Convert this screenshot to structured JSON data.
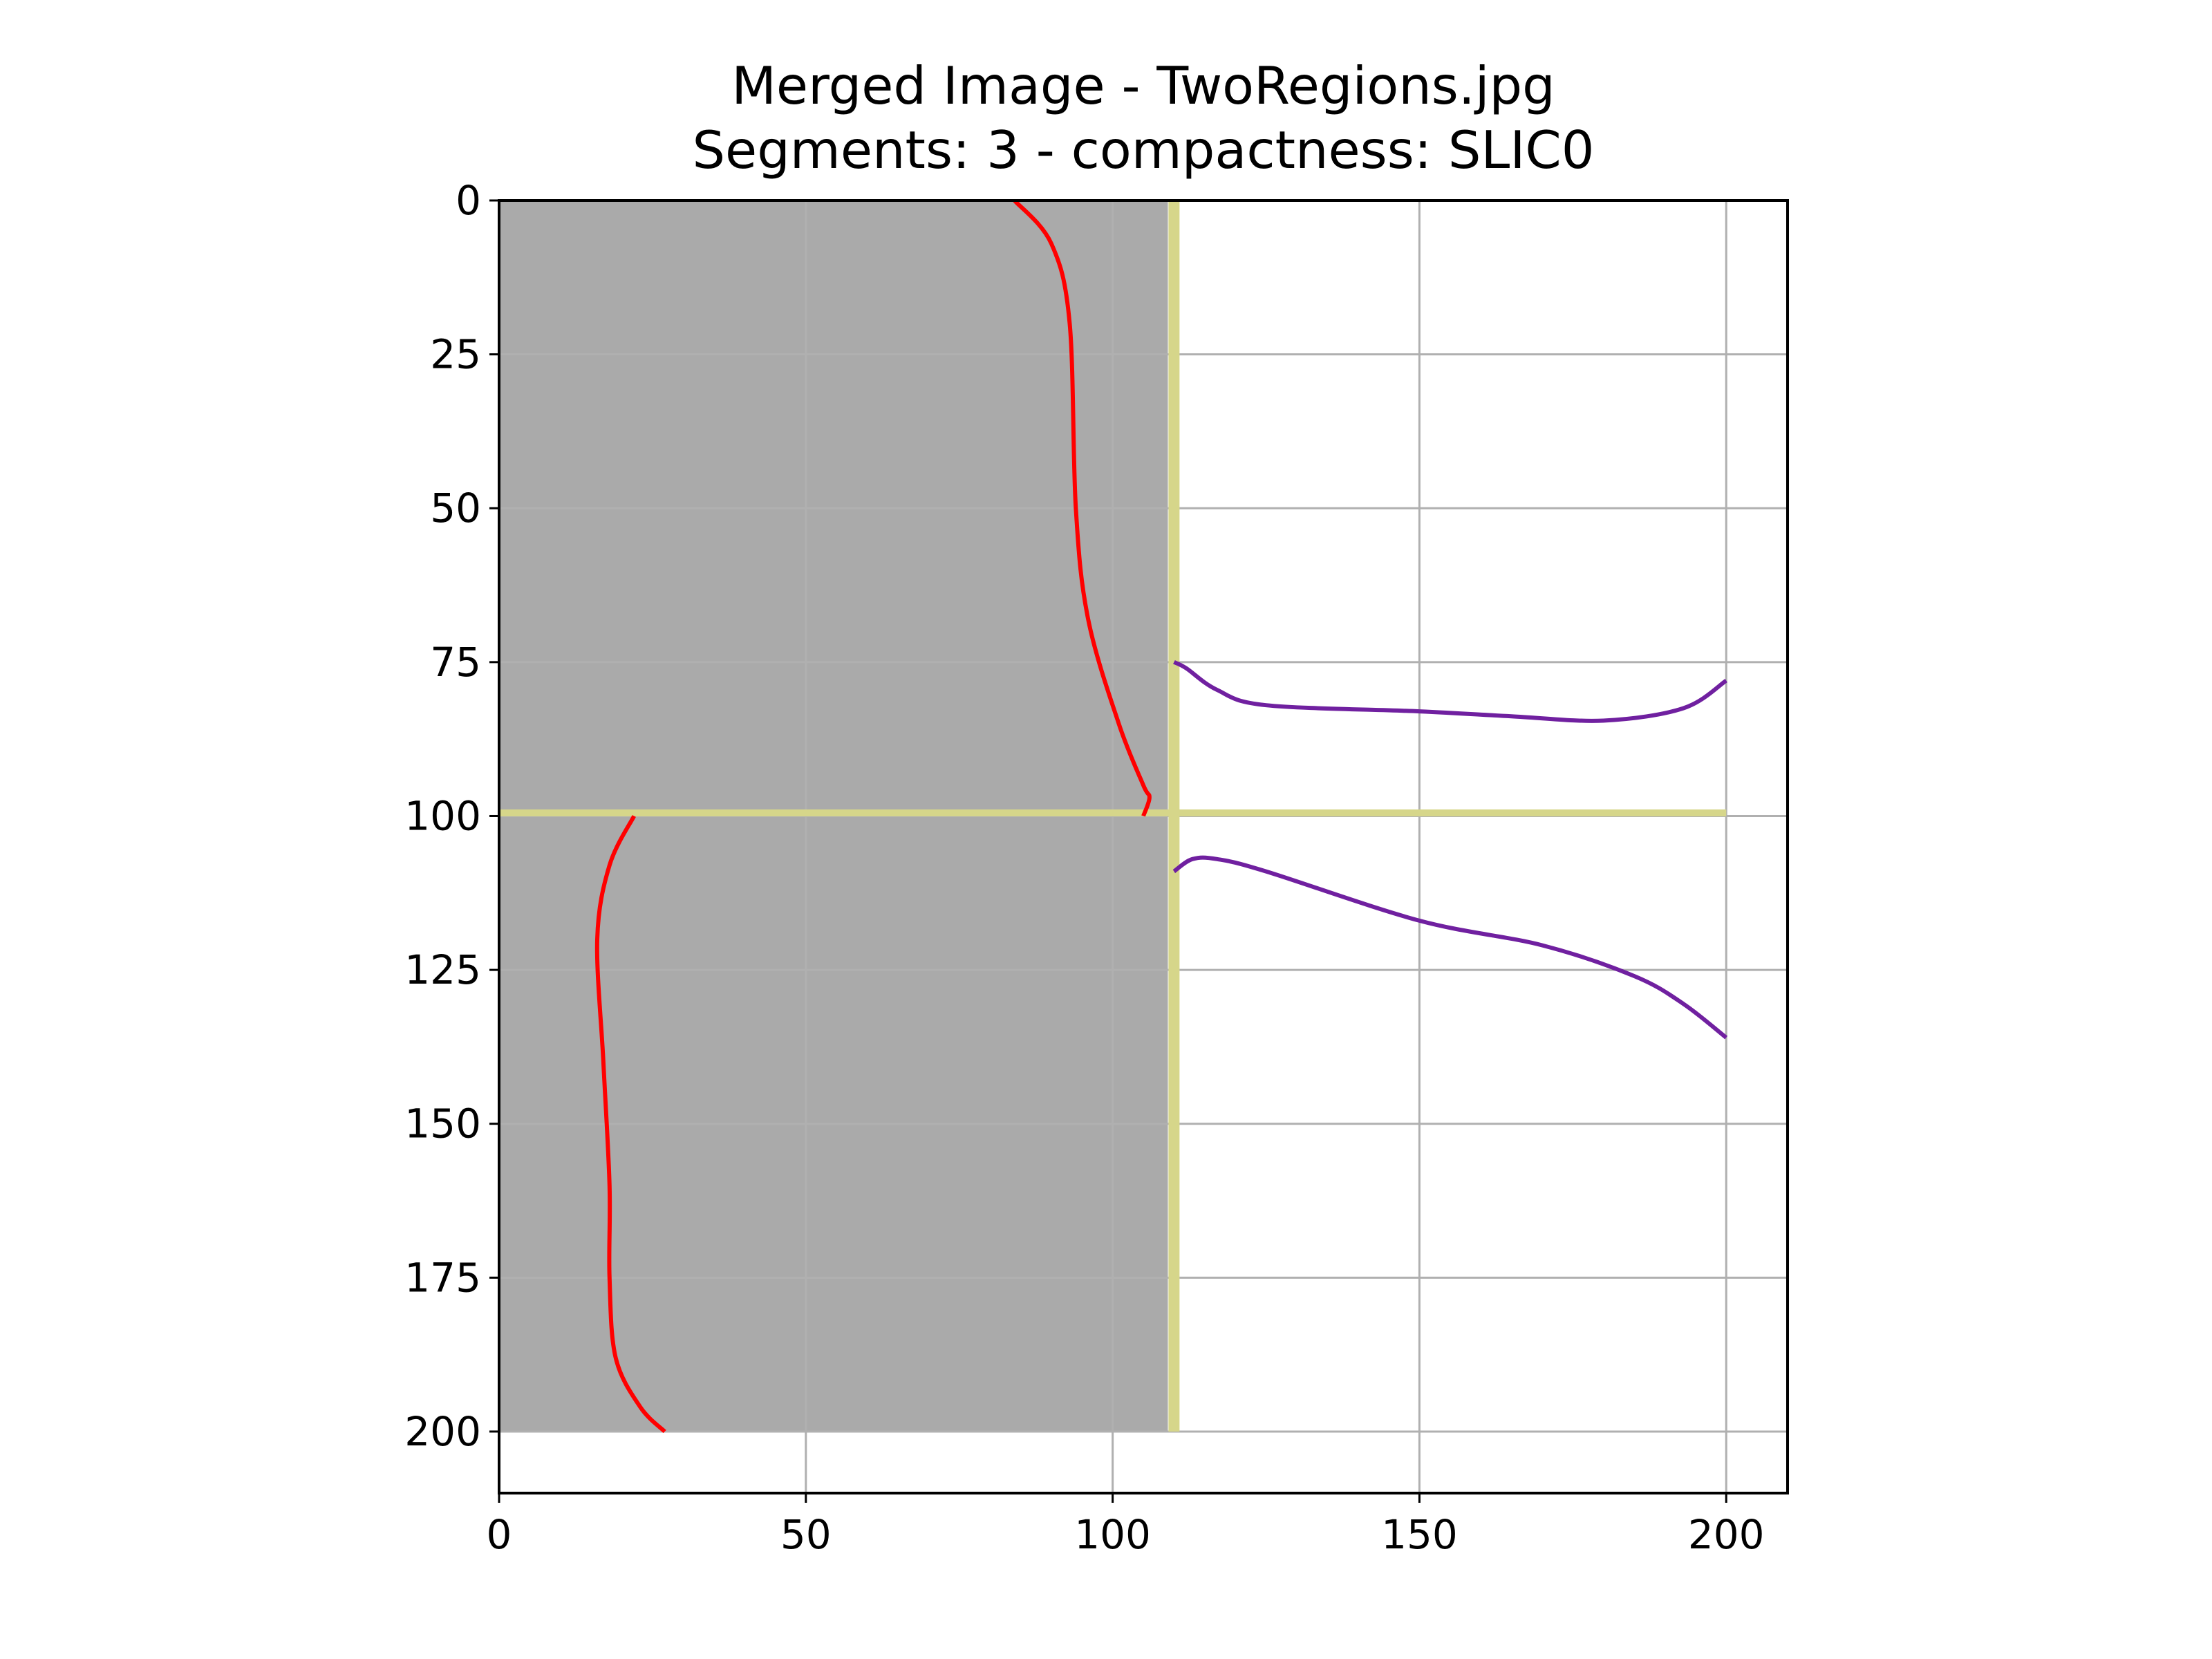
{
  "chart_data": {
    "type": "line",
    "title": "Merged Image - TwoRegions.jpg",
    "subtitle": "Segments: 3 - compactness: SLIC0",
    "xlabel": "",
    "ylabel": "",
    "xlim": [
      0,
      210
    ],
    "ylim": [
      210,
      0
    ],
    "y_inverted": true,
    "grid": true,
    "x_ticks": [
      0,
      50,
      100,
      150,
      200
    ],
    "y_ticks": [
      0,
      25,
      50,
      75,
      100,
      125,
      150,
      175,
      200
    ],
    "background_image": {
      "gray_region": {
        "x": [
          0,
          109
        ],
        "y": [
          0,
          200
        ],
        "color": "#aaaaaa"
      },
      "white_region": {
        "x": [
          109,
          200
        ],
        "y": [
          0,
          200
        ],
        "color": "#ffffff"
      }
    },
    "boundaries": [
      {
        "color": "#d6d68a",
        "points": [
          [
            110,
            0
          ],
          [
            110,
            200
          ]
        ]
      },
      {
        "color": "#d6d68a",
        "points": [
          [
            0,
            99.5
          ],
          [
            200,
            99.5
          ]
        ]
      }
    ],
    "series": [
      {
        "color": "#ff0000",
        "points": [
          [
            84,
            0
          ],
          [
            90,
            7
          ],
          [
            93,
            20
          ],
          [
            94,
            50
          ],
          [
            96,
            68
          ],
          [
            101,
            85
          ],
          [
            105,
            95
          ],
          [
            106,
            97
          ],
          [
            105,
            100
          ]
        ]
      },
      {
        "color": "#ff0000",
        "points": [
          [
            22,
            100
          ],
          [
            18,
            108
          ],
          [
            16,
            120
          ],
          [
            17,
            140
          ],
          [
            18,
            160
          ],
          [
            18,
            175
          ],
          [
            19,
            188
          ],
          [
            23,
            196
          ],
          [
            27,
            200
          ]
        ]
      },
      {
        "color": "#7020a0",
        "points": [
          [
            110,
            75
          ],
          [
            112,
            76
          ],
          [
            117,
            79.5
          ],
          [
            125,
            82
          ],
          [
            150,
            83
          ],
          [
            165,
            83.8
          ],
          [
            180,
            84.5
          ],
          [
            193,
            82.5
          ],
          [
            200,
            78
          ]
        ]
      },
      {
        "color": "#7020a0",
        "points": [
          [
            110,
            109
          ],
          [
            113,
            107
          ],
          [
            117,
            107
          ],
          [
            125,
            109
          ],
          [
            150,
            117
          ],
          [
            170,
            121
          ],
          [
            185,
            126
          ],
          [
            193,
            130.5
          ],
          [
            200,
            136
          ]
        ]
      }
    ]
  }
}
